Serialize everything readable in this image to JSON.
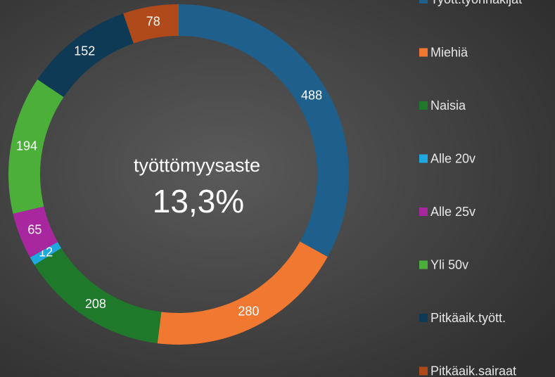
{
  "chart_data": {
    "type": "donut",
    "center_label": "työttömyysaste",
    "center_value": "13,3%",
    "categories": [
      "Tyött.työnhakijat",
      "Miehiä",
      "Naisia",
      "Alle 20v",
      "Alle 25v",
      "Yli 50v",
      "Pitkäaik.tyött.",
      "Pitkäaik.sairaat"
    ],
    "values": [
      488,
      280,
      208,
      12,
      65,
      194,
      152,
      78
    ],
    "colors": [
      "#1f5f8b",
      "#f07830",
      "#1e7a2a",
      "#1ea8e0",
      "#a9279e",
      "#4caf3a",
      "#0e3a55",
      "#b04a1a"
    ],
    "legend": "right"
  }
}
